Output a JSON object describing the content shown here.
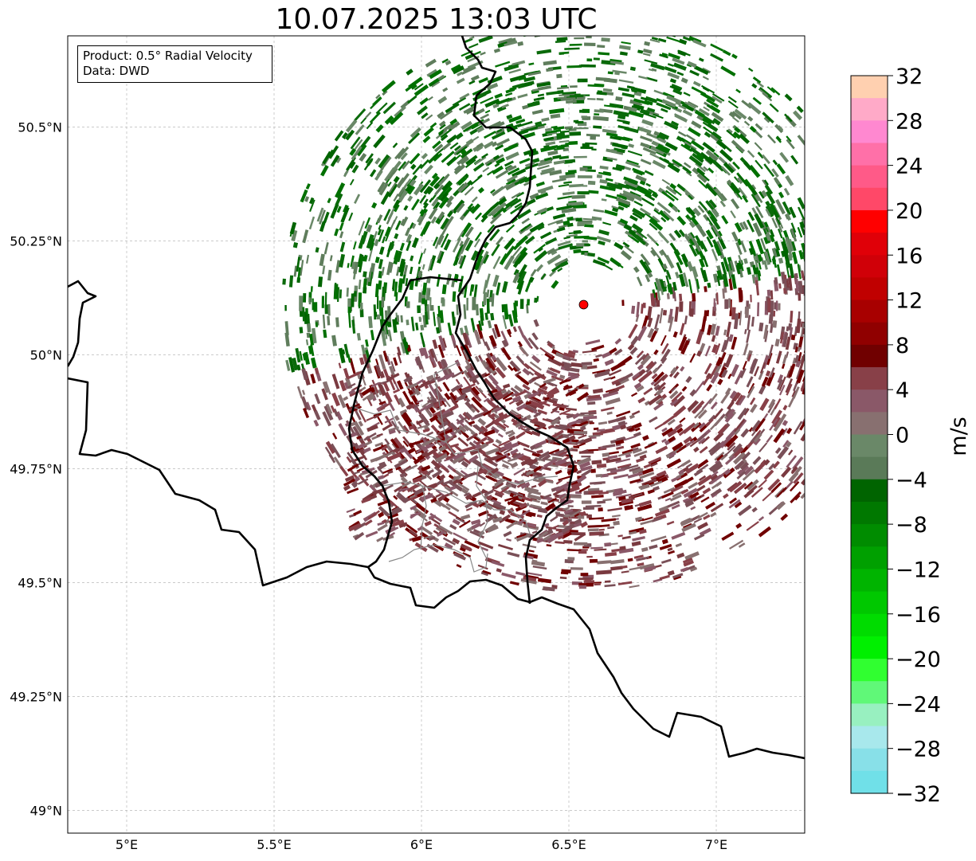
{
  "title": "10.07.2025 13:03 UTC",
  "info_box": {
    "product_line": "Product: 0.5° Radial Velocity",
    "data_line": "Data: DWD"
  },
  "map": {
    "lon_range": [
      4.8,
      7.3
    ],
    "lat_range": [
      48.95,
      50.7
    ],
    "lon_ticks": [
      {
        "value": 5.0,
        "label": "5°E"
      },
      {
        "value": 5.5,
        "label": "5.5°E"
      },
      {
        "value": 6.0,
        "label": "6°E"
      },
      {
        "value": 6.5,
        "label": "6.5°E"
      },
      {
        "value": 7.0,
        "label": "7°E"
      }
    ],
    "lat_ticks": [
      {
        "value": 49.0,
        "label": "49°N"
      },
      {
        "value": 49.25,
        "label": "49.25°N"
      },
      {
        "value": 49.5,
        "label": "49.5°N"
      },
      {
        "value": 49.75,
        "label": "49.75°N"
      },
      {
        "value": 50.0,
        "label": "50°N"
      },
      {
        "value": 50.25,
        "label": "50.25°N"
      },
      {
        "value": 50.5,
        "label": "50.5°N"
      }
    ],
    "gridlines": true,
    "radar_site": {
      "lon": 6.55,
      "lat": 50.11,
      "color": "#ff0000"
    }
  },
  "colorbar": {
    "unit": "m/s",
    "range": [
      -32,
      32
    ],
    "tick_labels": [
      "32",
      "28",
      "24",
      "20",
      "16",
      "12",
      "8",
      "4",
      "0",
      "−4",
      "−8",
      "−12",
      "−16",
      "−20",
      "−24",
      "−28",
      "−32"
    ],
    "colors_top_to_bottom": [
      "#ffd0b0",
      "#ffaac8",
      "#ff88d0",
      "#ff70a8",
      "#ff5a88",
      "#ff4868",
      "#ff0000",
      "#e00008",
      "#d00008",
      "#c00000",
      "#a80000",
      "#900000",
      "#700000",
      "#884048",
      "#8a5868",
      "#887070",
      "#6a8868",
      "#5a7a58",
      "#006400",
      "#007800",
      "#008c00",
      "#00a000",
      "#00b400",
      "#00c800",
      "#00dc00",
      "#00f000",
      "#30ff30",
      "#60f878",
      "#98f0c0",
      "#a8e8ec",
      "#88e0e8",
      "#70e0e8"
    ]
  }
}
